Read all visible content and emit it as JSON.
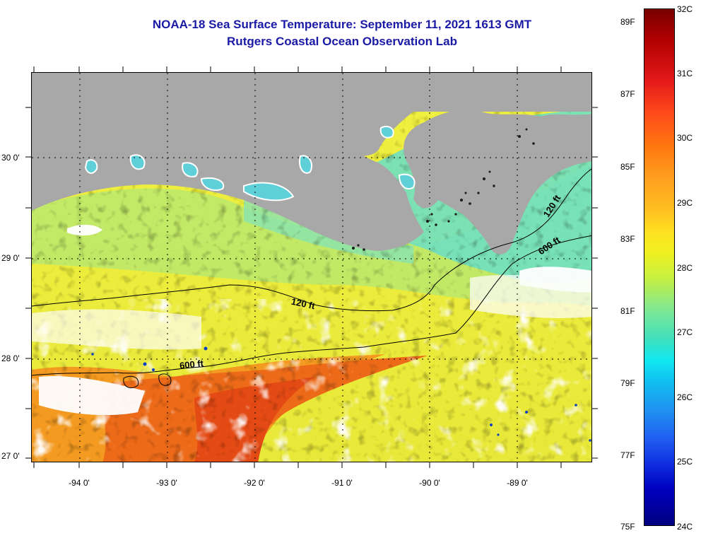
{
  "header": {
    "title": "NOAA-18 Sea Surface Temperature:  September 11, 2021 1613 GMT",
    "subtitle": "Rutgers Coastal Ocean Observation Lab"
  },
  "map": {
    "latitude_labels": [
      "30 0'",
      "29 0'",
      "28 0'",
      "27 0'"
    ],
    "longitude_labels": [
      "-94 0'",
      "-93 0'",
      "-92 0'",
      "-91 0'",
      "-90 0'",
      "-89 0'"
    ],
    "contour_labels": [
      "120 ft",
      "600 ft",
      "120 ft",
      "600 ft"
    ],
    "colors": {
      "land": "#a9a9a9",
      "cloud": "#ffffff",
      "nearshore_cyan": "#6ee0c8",
      "shelf_yellow": "#e6f050",
      "warm_orange": "#f07020",
      "deep_red": "#e85018"
    }
  },
  "colorbar": {
    "fahrenheit_labels": [
      "89F",
      "87F",
      "85F",
      "83F",
      "81F",
      "79F",
      "77F",
      "75F"
    ],
    "celsius_labels": [
      "32C",
      "31C",
      "30C",
      "29C",
      "28C",
      "27C",
      "26C",
      "25C",
      "24C"
    ]
  }
}
